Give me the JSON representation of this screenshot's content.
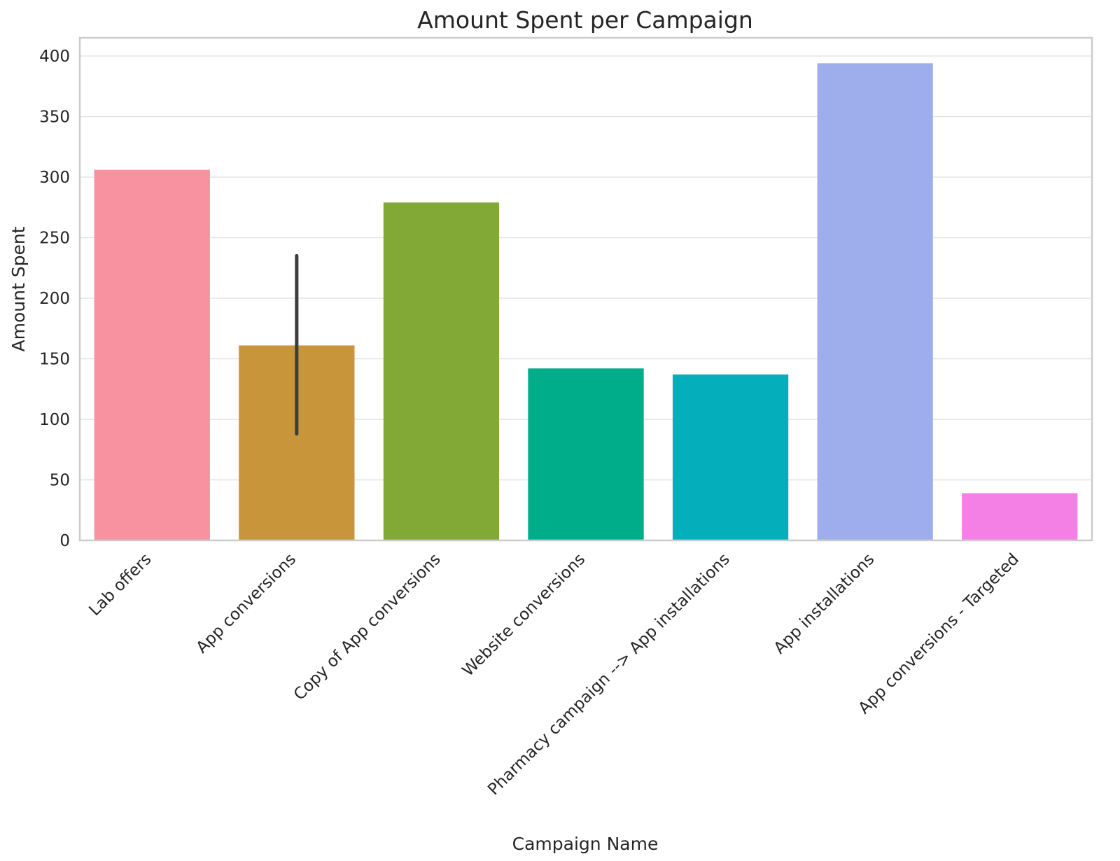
{
  "chart_data": {
    "type": "bar",
    "title": "Amount Spent per Campaign",
    "xlabel": "Campaign Name",
    "ylabel": "Amount Spent",
    "ylim": [
      0,
      415
    ],
    "yticks": [
      0,
      50,
      100,
      150,
      200,
      250,
      300,
      350,
      400
    ],
    "grid": "horizontal",
    "categories": [
      "Lab offers",
      "App conversions",
      "Copy of App conversions",
      "Website conversions",
      "Pharmacy campaign --> App installations",
      "App installations",
      "App conversions - Targeted"
    ],
    "values": [
      306,
      161,
      279,
      142,
      137,
      394,
      39
    ],
    "error_bars": [
      null,
      [
        88,
        235
      ],
      null,
      null,
      null,
      null,
      null
    ],
    "colors": [
      "#f892a1",
      "#c8953a",
      "#82a836",
      "#00ad8b",
      "#04aebb",
      "#9eaeed",
      "#f580e5"
    ]
  }
}
